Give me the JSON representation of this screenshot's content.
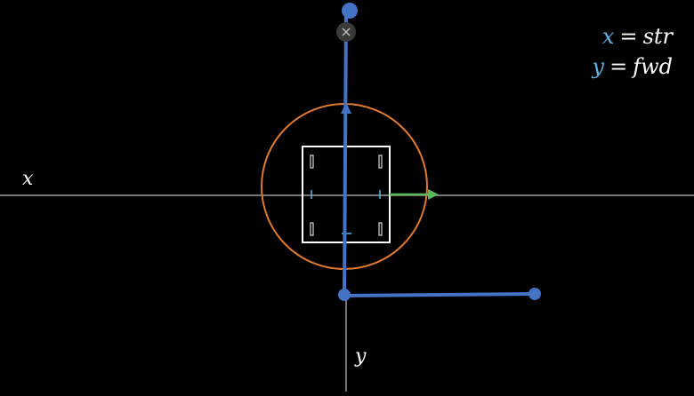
{
  "axes": {
    "x_label": "x",
    "y_label": "y"
  },
  "legend": {
    "line1": {
      "var": "x",
      "eq": "=",
      "value": "str"
    },
    "line2": {
      "var": "y",
      "eq": "=",
      "value": "fwd"
    }
  },
  "colors": {
    "background": "#000000",
    "axis": "#9a9a9a",
    "blue": "#4472c4",
    "orange": "#e07a2c",
    "green": "#5cb85c",
    "legend_var": "#5ab4e6",
    "white": "#ffffff"
  },
  "icons": {
    "close": "close-icon"
  }
}
